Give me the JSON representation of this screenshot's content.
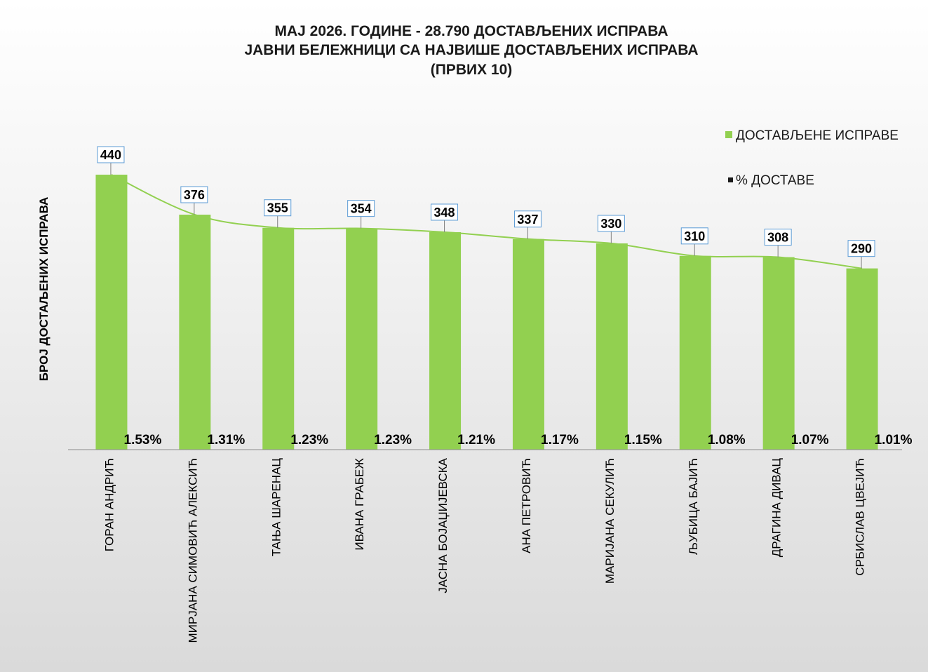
{
  "chart_data": {
    "type": "bar",
    "title_lines": [
      "МАЈ 2026. ГОДИНЕ - 28.790  ДОСТАВЉЕНИХ  ИСПРАВА",
      "ЈАВНИ БЕЛЕЖНИЦИ СА НАЈВИШЕ ДОСТАВЉЕНИХ  ИСПРАВА",
      "(ПРВИХ 10)"
    ],
    "ylabel": "БРОЈ ДОСТАЉЕНИХ ИСПРАВА",
    "xlabel": "",
    "ylim": [
      0,
      440
    ],
    "grid": false,
    "legend_position": "top-right",
    "trendline": true,
    "categories": [
      "ГОРАН АНДРИЋ",
      "МИРЈАНА СИМОВИЋ АЛЕКСИЋ",
      "ТАЊА ШАРЕНАЦ",
      "ИВАНА ГРАБЕЖ",
      "ЈАСНА БОЈАЏИЈЕВСКА",
      "АНА ПЕТРОВИЋ",
      "МАРИЈАНА СЕКУЛИЋ",
      "ЉУБИЦА БАЈИЋ",
      "ДРАГИНА ДИВАЦ",
      "СРБИСЛАВ ЦВЕЈИЋ"
    ],
    "series": [
      {
        "name": "ДОСТАВЉЕНЕ  ИСПРАВЕ",
        "color": "#92d050",
        "values": [
          440,
          376,
          355,
          354,
          348,
          337,
          330,
          310,
          308,
          290
        ]
      },
      {
        "name": "% ДОСТАВЕ",
        "color": "#1a1a1a",
        "values": [
          "1.53%",
          "1.31%",
          "1.23%",
          "1.23%",
          "1.21%",
          "1.17%",
          "1.15%",
          "1.08%",
          "1.07%",
          "1.01%"
        ]
      }
    ]
  }
}
